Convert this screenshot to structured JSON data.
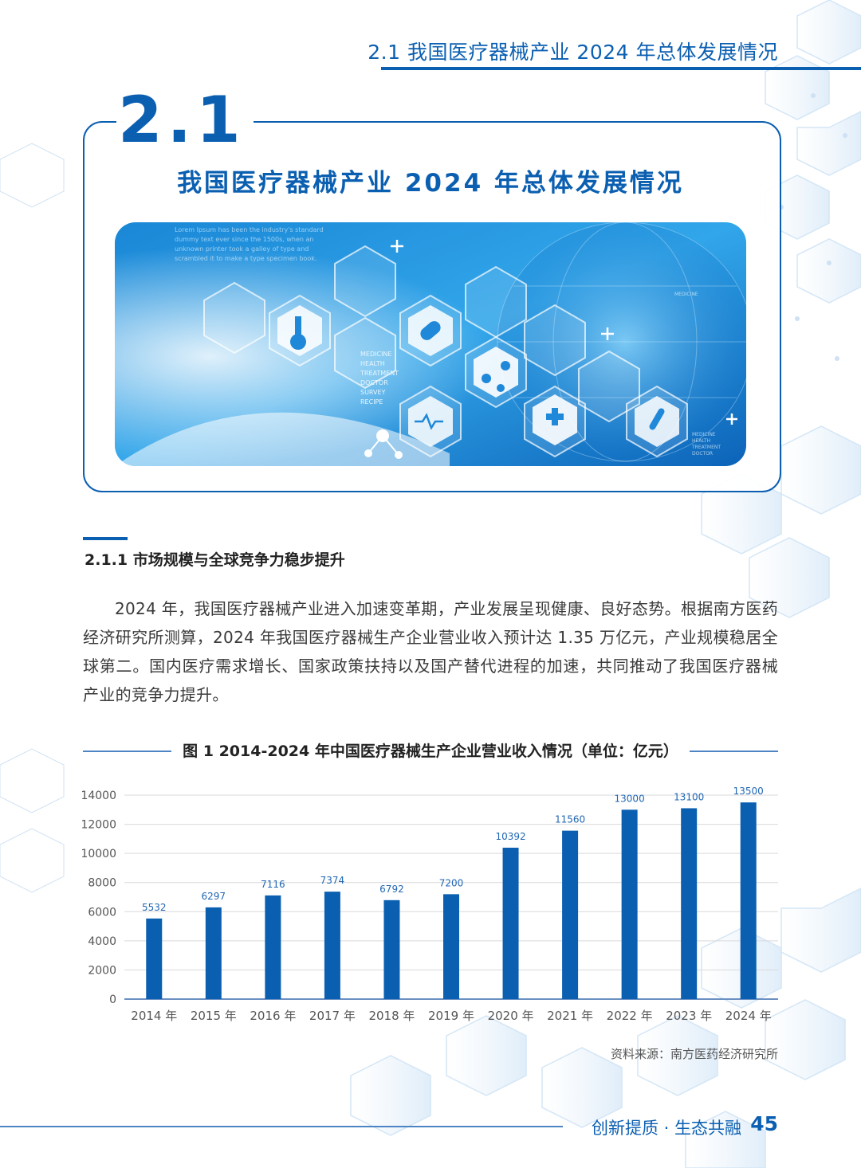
{
  "header": {
    "title": "2.1  我国医疗器械产业 2024 年总体发展情况"
  },
  "section": {
    "number": "2.1",
    "title": "我国医疗器械产业 2024 年总体发展情况"
  },
  "banner": {
    "lorem_lines": [
      "Lorem Ipsum has been the industry's standard",
      "dummy text ever since the 1500s, when an",
      "unknown printer took a galley of type and",
      "scrambled it to make a type specimen book."
    ],
    "hex_text": [
      "MEDICINE",
      "HEALTH",
      "TREATMENT",
      "DOCTOR",
      "SURVEY",
      "RECIPE"
    ],
    "small_text": [
      "MEDICINE",
      "HEALTH",
      "TREATMENT",
      "DOCTOR"
    ],
    "globe_label": "MEDICINE"
  },
  "subsection": {
    "title": "2.1.1  市场规模与全球竞争力稳步提升"
  },
  "paragraph": "2024 年，我国医疗器械产业进入加速变革期，产业发展呈现健康、良好态势。根据南方医药经济研究所测算，2024 年我国医疗器械生产企业营业收入预计达 1.35 万亿元，产业规模稳居全球第二。国内医疗需求增长、国家政策扶持以及国产替代进程的加速，共同推动了我国医疗器械产业的竞争力提升。",
  "figure": {
    "title": "图 1   2014-2024 年中国医疗器械生产企业营业收入情况（单位：亿元）"
  },
  "chart_data": {
    "type": "bar",
    "categories": [
      "2014 年",
      "2015 年",
      "2016 年",
      "2017 年",
      "2018 年",
      "2019 年",
      "2020 年",
      "2021 年",
      "2022 年",
      "2023 年",
      "2024 年"
    ],
    "values": [
      5532,
      6297,
      7116,
      7374,
      6792,
      7200,
      10392,
      11560,
      13000,
      13100,
      13500
    ],
    "ylim": [
      0,
      14000
    ],
    "yticks": [
      0,
      2000,
      4000,
      6000,
      8000,
      10000,
      12000,
      14000
    ],
    "grid": true,
    "bar_color": "#0b5fb1",
    "label_color": "#1f66b3"
  },
  "source": "资料来源：南方医药经济研究所",
  "footer": {
    "text": "创新提质 · 生态共融",
    "page": "45"
  },
  "colors": {
    "accent": "#0b5fb1"
  }
}
